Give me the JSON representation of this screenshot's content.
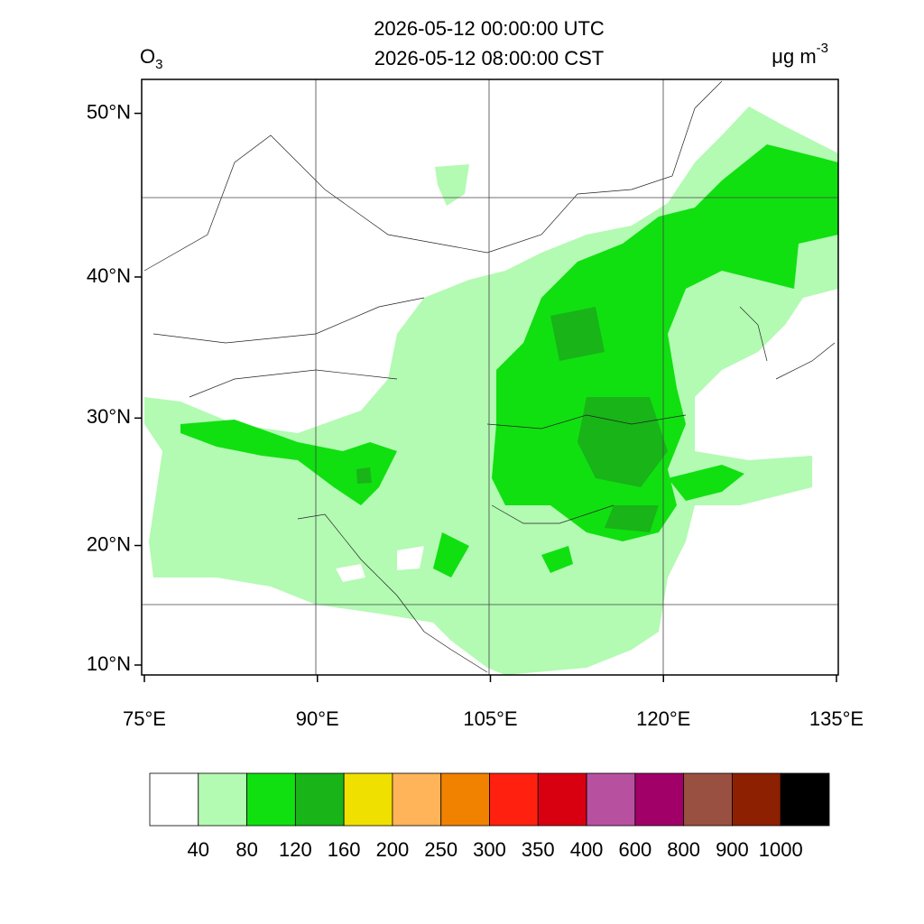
{
  "title": [
    "2026-05-12 00:00:00 UTC",
    "2026-05-12 08:00:00 CST"
  ],
  "variable": {
    "text": "O",
    "subscript": "3"
  },
  "units": {
    "text": "μg m",
    "superscript": "-3"
  },
  "lat_ticks": [
    {
      "value": 10,
      "label": "10°N"
    },
    {
      "value": 20,
      "label": "20°N"
    },
    {
      "value": 30,
      "label": "30°N"
    },
    {
      "value": 40,
      "label": "40°N"
    },
    {
      "value": 50,
      "label": "50°N"
    }
  ],
  "lon_ticks": [
    {
      "value": 75,
      "label": "75°E"
    },
    {
      "value": 90,
      "label": "90°E"
    },
    {
      "value": 105,
      "label": "105°E"
    },
    {
      "value": 120,
      "label": "120°E"
    },
    {
      "value": 135,
      "label": "135°E"
    }
  ],
  "colorbar": {
    "levels": [
      40,
      80,
      120,
      160,
      200,
      250,
      300,
      350,
      400,
      600,
      800,
      900,
      1000
    ],
    "colors": [
      "#ffffff",
      "#b3fab3",
      "#10e010",
      "#18b418",
      "#f0e000",
      "#ffb45a",
      "#f08200",
      "#ff2010",
      "#d80010",
      "#b850a0",
      "#a00068",
      "#9a5040",
      "#8c2000",
      "#000000"
    ]
  }
}
